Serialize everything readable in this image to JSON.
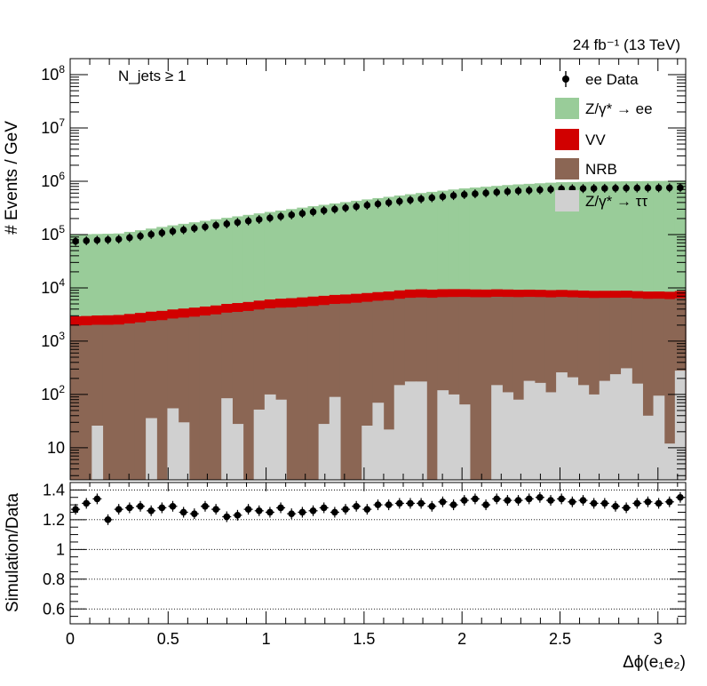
{
  "chart_data": {
    "type": "bar",
    "stacked": true,
    "log_y": true,
    "lumi_label": "24 fb⁻¹ (13 TeV)",
    "annotation": "N_jets ≥ 1",
    "xlabel": "Δϕ(e₁e₂)",
    "ylabel": "# Events / GeV",
    "ratio_ylabel": "Simulation/Data",
    "xlim": [
      0,
      3.1416
    ],
    "ylim": [
      2.5,
      200000000
    ],
    "ratio_ylim": [
      0.5,
      1.45
    ],
    "x_ticks": [
      "0",
      "0.5",
      "1",
      "1.5",
      "2",
      "2.5",
      "3"
    ],
    "y_ticks": [
      "10",
      "10^2",
      "10^3",
      "10^4",
      "10^5",
      "10^6",
      "10^7",
      "10^8"
    ],
    "ratio_ticks": [
      "0.6",
      "0.8",
      "1",
      "1.2",
      "1.4"
    ],
    "ratio_grid": true,
    "legend": {
      "position": "top-right",
      "entries": [
        {
          "label": "ee Data",
          "marker": "point"
        },
        {
          "label": "Z/γ* → ee",
          "color": "#99cc99"
        },
        {
          "label": "VV",
          "color": "#d10000"
        },
        {
          "label": "NRB",
          "color": "#8b6654"
        },
        {
          "label": "Z/γ* → ττ",
          "color": "#d0d0d0"
        }
      ]
    },
    "bin_width": 0.0546,
    "n_bins": 57,
    "series": [
      {
        "name": "Z/γ* → ττ",
        "color": "#d0d0d0",
        "anchors": [
          [
            0.03,
            2
          ],
          [
            0.06,
            2
          ],
          [
            0.11,
            26
          ],
          [
            0.17,
            2
          ],
          [
            0.22,
            2
          ],
          [
            0.28,
            2
          ],
          [
            0.33,
            2
          ],
          [
            0.39,
            36
          ],
          [
            0.44,
            2
          ],
          [
            0.5,
            55
          ],
          [
            0.55,
            30
          ],
          [
            0.61,
            2
          ],
          [
            0.66,
            2
          ],
          [
            0.72,
            2
          ],
          [
            0.77,
            85
          ],
          [
            0.83,
            28
          ],
          [
            0.88,
            2
          ],
          [
            0.94,
            52
          ],
          [
            0.99,
            100
          ],
          [
            1.05,
            80
          ],
          [
            1.1,
            2
          ],
          [
            1.16,
            2
          ],
          [
            1.21,
            2
          ],
          [
            1.27,
            28
          ],
          [
            1.32,
            90
          ],
          [
            1.38,
            2
          ],
          [
            1.43,
            2
          ],
          [
            1.49,
            26
          ],
          [
            1.54,
            70
          ],
          [
            1.6,
            22
          ],
          [
            1.65,
            150
          ],
          [
            1.71,
            175
          ],
          [
            1.76,
            175
          ],
          [
            1.82,
            2
          ],
          [
            1.87,
            120
          ],
          [
            1.93,
            100
          ],
          [
            1.98,
            65
          ],
          [
            2.04,
            2
          ],
          [
            2.09,
            2
          ],
          [
            2.15,
            150
          ],
          [
            2.2,
            110
          ],
          [
            2.26,
            80
          ],
          [
            2.31,
            180
          ],
          [
            2.37,
            165
          ],
          [
            2.42,
            110
          ],
          [
            2.48,
            260
          ],
          [
            2.53,
            210
          ],
          [
            2.59,
            150
          ],
          [
            2.64,
            100
          ],
          [
            2.7,
            180
          ],
          [
            2.75,
            240
          ],
          [
            2.81,
            310
          ],
          [
            2.86,
            160
          ],
          [
            2.92,
            40
          ],
          [
            2.97,
            95
          ],
          [
            3.03,
            12
          ],
          [
            3.08,
            280
          ]
        ]
      },
      {
        "name": "NRB",
        "color": "#8b6654",
        "anchors": [
          [
            0,
            1950
          ],
          [
            0.25,
            2050
          ],
          [
            0.5,
            2550
          ],
          [
            0.75,
            3200
          ],
          [
            1.0,
            4000
          ],
          [
            1.25,
            4600
          ],
          [
            1.5,
            5400
          ],
          [
            1.75,
            6400
          ],
          [
            2.0,
            6700
          ],
          [
            2.25,
            6650
          ],
          [
            2.5,
            6500
          ],
          [
            2.75,
            6300
          ],
          [
            3.1416,
            6100
          ]
        ]
      },
      {
        "name": "VV",
        "color": "#d10000",
        "anchors": [
          [
            0,
            2900
          ],
          [
            0.25,
            3100
          ],
          [
            0.5,
            3800
          ],
          [
            0.75,
            4700
          ],
          [
            1.0,
            5900
          ],
          [
            1.25,
            6900
          ],
          [
            1.5,
            7900
          ],
          [
            1.75,
            9200
          ],
          [
            2.0,
            9400
          ],
          [
            2.25,
            9200
          ],
          [
            2.5,
            8900
          ],
          [
            2.75,
            8600
          ],
          [
            3.1416,
            8400
          ]
        ]
      },
      {
        "name": "Z/γ* → ee",
        "color": "#99cc99",
        "anchors": [
          [
            0,
            100000
          ],
          [
            0.25,
            105000
          ],
          [
            0.5,
            145000
          ],
          [
            0.75,
            195000
          ],
          [
            1.0,
            260000
          ],
          [
            1.25,
            345000
          ],
          [
            1.5,
            450000
          ],
          [
            1.75,
            580000
          ],
          [
            2.0,
            730000
          ],
          [
            2.25,
            860000
          ],
          [
            2.5,
            960000
          ],
          [
            2.75,
            990000
          ],
          [
            3.1416,
            1030000
          ]
        ]
      },
      {
        "name": "ee Data",
        "marker": "point",
        "anchors": [
          [
            0,
            74000
          ],
          [
            0.25,
            82000
          ],
          [
            0.5,
            112000
          ],
          [
            0.75,
            150000
          ],
          [
            1.0,
            200000
          ],
          [
            1.25,
            270000
          ],
          [
            1.5,
            350000
          ],
          [
            1.75,
            450000
          ],
          [
            2.0,
            560000
          ],
          [
            2.25,
            650000
          ],
          [
            2.5,
            720000
          ],
          [
            2.75,
            740000
          ],
          [
            3.1416,
            760000
          ]
        ]
      }
    ],
    "ratio": [
      1.27,
      1.31,
      1.34,
      1.2,
      1.27,
      1.28,
      1.29,
      1.26,
      1.28,
      1.29,
      1.25,
      1.24,
      1.29,
      1.27,
      1.22,
      1.23,
      1.27,
      1.26,
      1.25,
      1.28,
      1.24,
      1.25,
      1.26,
      1.28,
      1.25,
      1.27,
      1.29,
      1.27,
      1.3,
      1.3,
      1.31,
      1.31,
      1.31,
      1.29,
      1.32,
      1.3,
      1.33,
      1.34,
      1.3,
      1.34,
      1.33,
      1.33,
      1.34,
      1.35,
      1.33,
      1.34,
      1.32,
      1.33,
      1.31,
      1.31,
      1.29,
      1.28,
      1.31,
      1.32,
      1.31,
      1.32,
      1.35
    ]
  }
}
